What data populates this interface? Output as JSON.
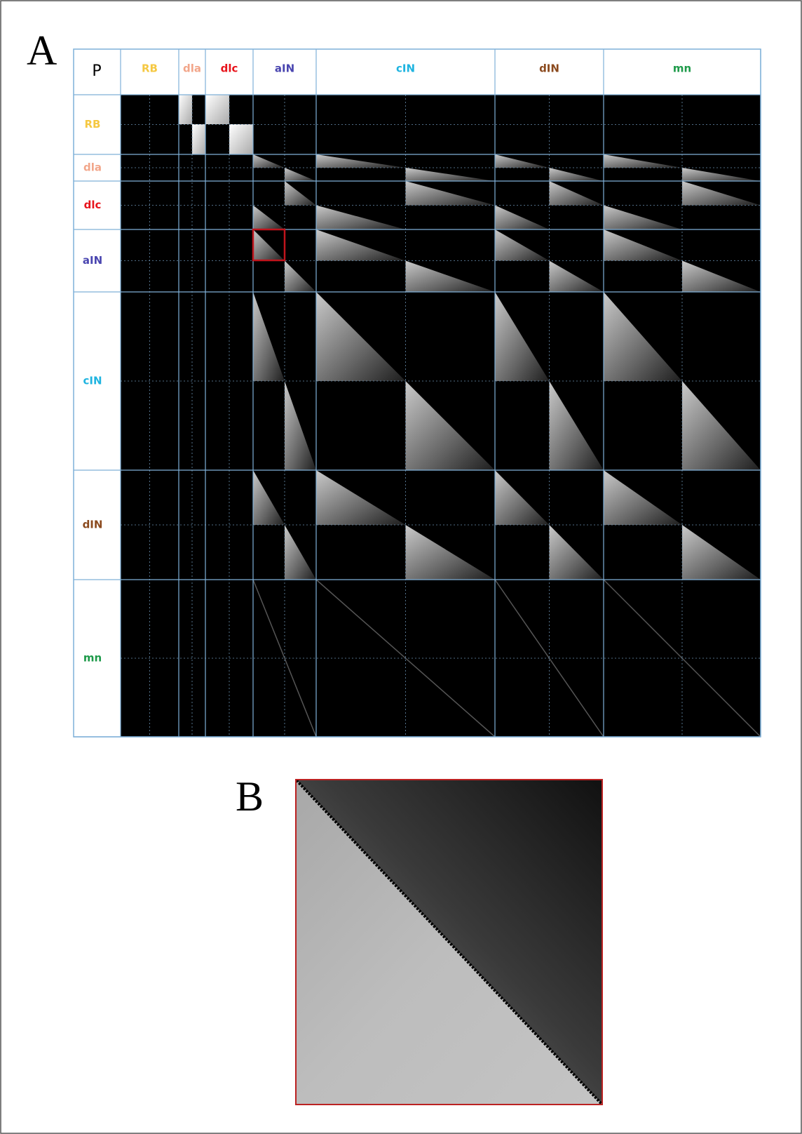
{
  "panel_a": {
    "label": "A",
    "matrix": {
      "corner": "P",
      "columns": [
        "RB",
        "dla",
        "dlc",
        "aIN",
        "cIN",
        "dIN",
        "mn"
      ],
      "rows": [
        "RB",
        "dla",
        "dlc",
        "aIN",
        "cIN",
        "dIN",
        "mn"
      ]
    }
  },
  "panel_b": {
    "label": "B"
  }
}
